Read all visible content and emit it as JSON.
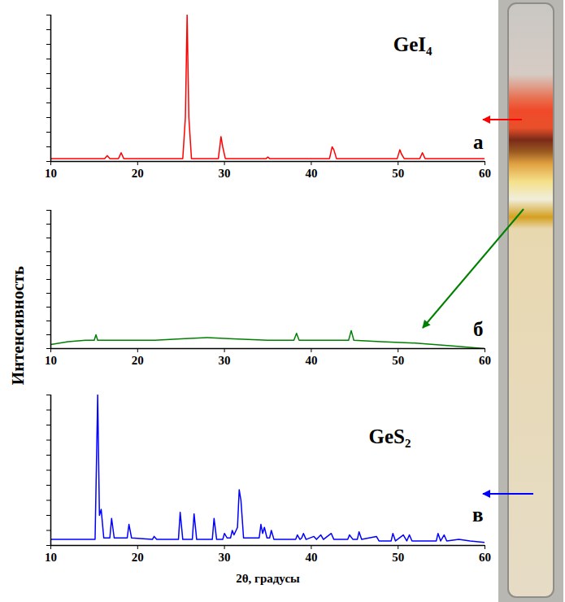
{
  "chart_data": [
    {
      "type": "line",
      "title": "GeI₄",
      "panel_label": "а",
      "color": "#ff0000",
      "xlim": [
        10,
        60
      ],
      "xticks": [
        10,
        20,
        30,
        40,
        50,
        60
      ],
      "ylim": [
        0,
        100
      ],
      "yticks": [
        0,
        10,
        20,
        30,
        40,
        50,
        60,
        70,
        80,
        90,
        100
      ],
      "tick_labels": "x",
      "x": [
        10,
        16.2,
        16.5,
        16.8,
        17.8,
        18.1,
        18.4,
        25.2,
        25.5,
        25.7,
        25.9,
        26.2,
        29.3,
        29.6,
        29.8,
        30.1,
        34.8,
        35,
        35.2,
        42.1,
        42.4,
        42.6,
        42.9,
        49.9,
        50.2,
        50.4,
        50.7,
        52.5,
        52.8,
        53.1,
        60
      ],
      "values": [
        2,
        2,
        4,
        2,
        2,
        6,
        2,
        2,
        30,
        100,
        30,
        2,
        2,
        17,
        10,
        2,
        2,
        3,
        2,
        2,
        10,
        8,
        2,
        2,
        8,
        5,
        2,
        2,
        6,
        2,
        2
      ]
    },
    {
      "type": "line",
      "panel_label": "б",
      "color": "#008000",
      "ylabel": "Интенсивность",
      "xlim": [
        10,
        60
      ],
      "xticks": [
        10,
        20,
        30,
        40,
        50,
        60
      ],
      "ylim": [
        0,
        100
      ],
      "yticks": [
        0,
        10,
        20,
        30,
        40,
        50,
        60,
        70,
        80,
        90,
        100
      ],
      "tick_labels": "x",
      "x": [
        10,
        12,
        14,
        15,
        15.2,
        15.4,
        18,
        22,
        25,
        28,
        31,
        35,
        38,
        38.3,
        38.6,
        42,
        44.3,
        44.6,
        44.9,
        48,
        52,
        56,
        60
      ],
      "values": [
        3,
        5,
        6,
        6,
        10,
        6,
        6,
        6,
        7,
        8,
        7,
        6,
        6,
        11,
        6,
        6,
        6,
        13,
        6,
        5,
        4,
        2,
        0
      ]
    },
    {
      "type": "line",
      "title": "GeS₂",
      "panel_label": "в",
      "color": "#0000ff",
      "xlabel": "2θ, градусы",
      "xlim": [
        10,
        60
      ],
      "xticks": [
        10,
        20,
        30,
        40,
        50,
        60
      ],
      "ylim": [
        0,
        100
      ],
      "yticks": [
        0,
        10,
        20,
        30,
        40,
        50,
        60,
        70,
        80,
        90,
        100
      ],
      "tick_labels": "x",
      "x": [
        10,
        15.1,
        15.4,
        15.6,
        15.8,
        16.1,
        16.8,
        17,
        17.3,
        18.8,
        19,
        19.3,
        21.7,
        21.9,
        22.2,
        24.7,
        24.9,
        25.2,
        26.3,
        26.5,
        26.8,
        28.6,
        28.8,
        29.1,
        29.8,
        30,
        30.3,
        30.7,
        30.9,
        31.1,
        31.5,
        31.7,
        31.9,
        32.2,
        34,
        34.2,
        34.4,
        34.6,
        34.9,
        35.2,
        35.4,
        35.7,
        38.2,
        38.4,
        38.7,
        38.9,
        39.1,
        39.4,
        40.3,
        40.6,
        41.1,
        41.4,
        42.3,
        42.6,
        44.2,
        44.4,
        44.8,
        45.3,
        45.5,
        45.8,
        47.5,
        47.8,
        49.2,
        49.4,
        49.7,
        50.6,
        51,
        51.3,
        51.6,
        54.4,
        54.6,
        54.9,
        55.3,
        55.6,
        57,
        58.3,
        60
      ],
      "values": [
        4,
        4,
        100,
        20,
        24,
        5,
        5,
        18,
        5,
        5,
        14,
        5,
        4,
        6,
        4,
        4,
        22,
        4,
        4,
        21,
        4,
        4,
        18,
        4,
        4,
        8,
        5,
        5,
        10,
        7,
        12,
        37,
        30,
        5,
        5,
        14,
        8,
        12,
        5,
        5,
        10,
        4,
        4,
        7,
        4,
        5,
        8,
        4,
        6,
        4,
        7,
        4,
        8,
        4,
        4,
        7,
        4,
        4,
        9,
        4,
        6,
        3,
        3,
        8,
        3,
        7,
        3,
        7,
        3,
        3,
        8,
        3,
        7,
        3,
        4,
        3,
        2
      ]
    }
  ]
}
